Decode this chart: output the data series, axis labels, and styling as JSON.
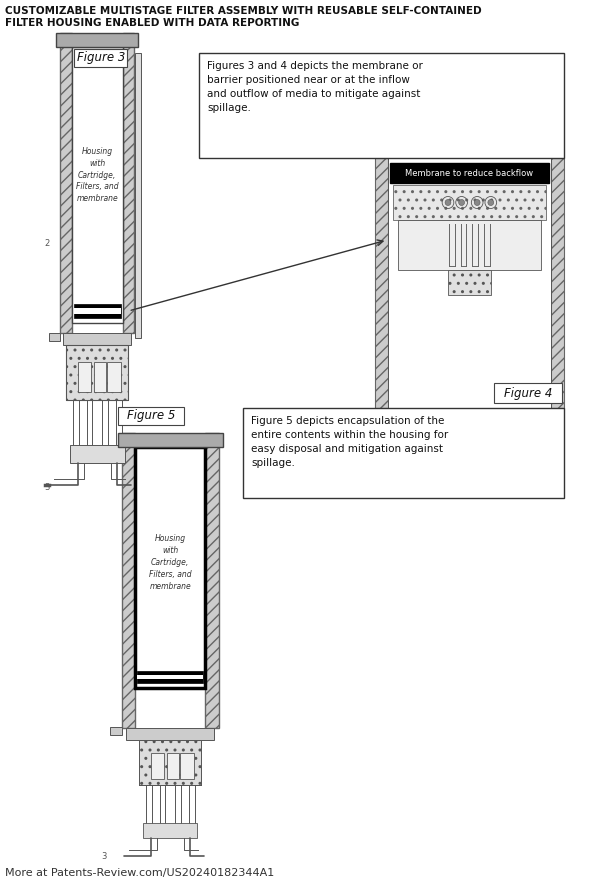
{
  "title": "CUSTOMIZABLE MULTISTAGE FILTER ASSEMBLY WITH REUSABLE SELF-CONTAINED\nFILTER HOUSING ENABLED WITH DATA REPORTING",
  "footer": "More at Patents-Review.com/US20240182344A1",
  "fig3_label": "Figure 3",
  "fig4_label": "Figure 4",
  "fig5_label": "Figure 5",
  "callout_34": "Figures 3 and 4 depicts the membrane or\nbarrier positioned near or at the inflow\nand outflow of media to mitigate against\nspillage.",
  "callout_5": "Figure 5 depicts encapsulation of the\nentire contents within the housing for\neasy disposal and mitigation against\nspillage.",
  "membrane_label": "Membrane to reduce backflow",
  "housing_text": "Housing\nwith\nCartridge,\nFilters, and\nmembrane",
  "bg_color": "#ffffff",
  "line_color": "#555555",
  "hatch_dense": "///",
  "title_fontsize": 7.5,
  "body_fontsize": 7.5,
  "label_fontsize": 8.5
}
